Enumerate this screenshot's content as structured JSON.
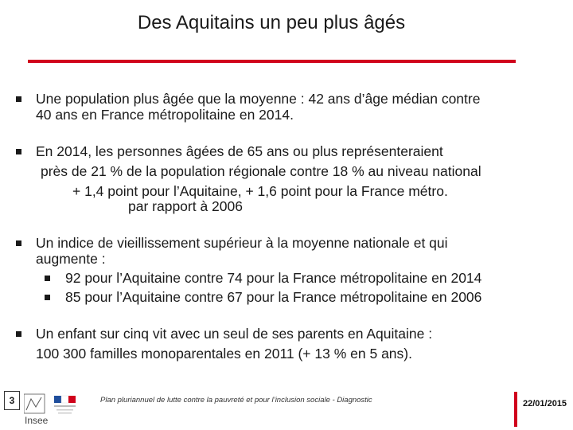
{
  "title": "Des Aquitains un peu plus âgés",
  "bullets": {
    "b1": {
      "l1": "Une population plus âgée que la moyenne : 42 ans d’âge médian contre",
      "l2": "40 ans en France métropolitaine en 2014."
    },
    "b2": {
      "l1": "En 2014, les personnes âgées de 65 ans ou plus représenteraient",
      "l2": "près de 21 % de la population régionale contre 18 % au niveau national",
      "l3": "+ 1,4 point pour l’Aquitaine, + 1,6 point pour la France métro.",
      "l4": "par rapport à 2006"
    },
    "b3": {
      "l1": "Un indice de vieillissement supérieur à la moyenne nationale et qui",
      "l2": "augmente :",
      "sub1": "92 pour l’Aquitaine contre 74 pour la France métropolitaine en 2014",
      "sub2": "85 pour l’Aquitaine contre 67 pour la France métropolitaine en 2006"
    },
    "b4": {
      "l1": "Un enfant sur cinq vit avec un seul de ses parents en Aquitaine :",
      "l2": "100 300 familles monoparentales en 2011 (+ 13 % en 5 ans)."
    }
  },
  "footer": {
    "page_number": "3",
    "caption": "Plan pluriannuel de lutte contre la pauvreté et pour l’inclusion sociale - Diagnostic",
    "date": "22/01/2015",
    "logo_text": "Insee"
  },
  "colors": {
    "accent": "#d0021b",
    "text": "#1a1a1a"
  }
}
